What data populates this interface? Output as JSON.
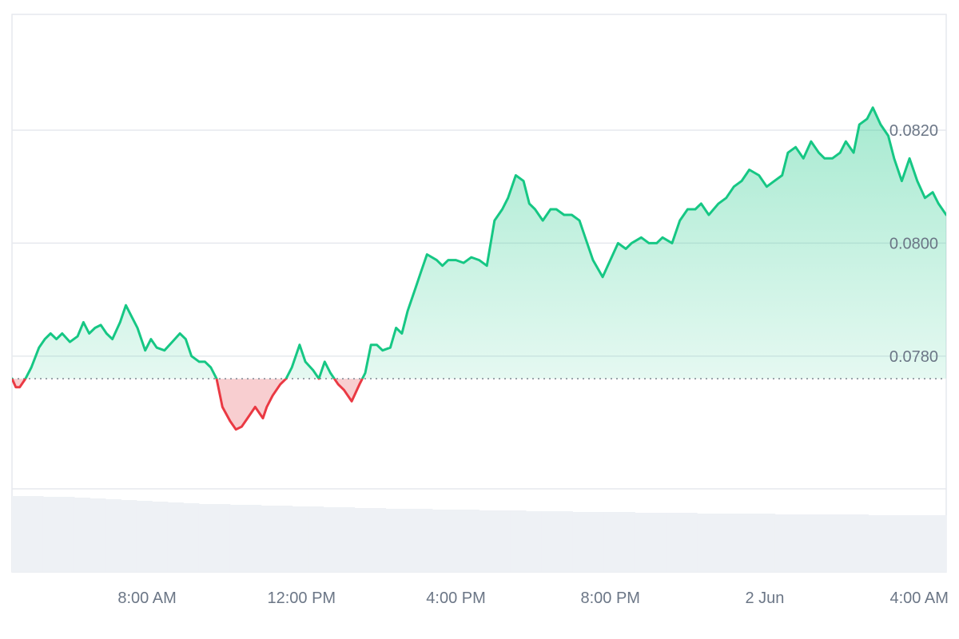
{
  "colors": {
    "up_line": "#16c784",
    "down_line": "#ea3943",
    "up_fill_top": "#16c784",
    "down_fill": "#f7c5c8",
    "grid": "#e6e9ee",
    "volume": "#eef1f5",
    "baseline": "#7d8590",
    "axis_text": "#6b7686"
  },
  "chart_data": {
    "type": "area",
    "baseline": 0.0776,
    "ylim": [
      0.07565,
      0.08405
    ],
    "yticks": [
      0.078,
      0.08,
      0.082
    ],
    "ytick_labels": [
      "0.0780",
      "0.0800",
      "0.0820"
    ],
    "xlim_hours": [
      4.5,
      28.7
    ],
    "xticks_hours": [
      8,
      12,
      16,
      20,
      24,
      28
    ],
    "xtick_labels": [
      "8:00 AM",
      "12:00 PM",
      "4:00 PM",
      "8:00 PM",
      "2 Jun",
      "4:00 AM"
    ],
    "series": [
      {
        "x": [
          4.5,
          4.6,
          4.7,
          4.85,
          5.0,
          5.2,
          5.35,
          5.5,
          5.65,
          5.8,
          6.0,
          6.2,
          6.35,
          6.5,
          6.65,
          6.8,
          6.95,
          7.1,
          7.3,
          7.45,
          7.6,
          7.75,
          7.95,
          8.1,
          8.25,
          8.45,
          8.65,
          8.85,
          9.0,
          9.15,
          9.35,
          9.5,
          9.65,
          9.8,
          9.95,
          10.15,
          10.3,
          10.45,
          10.6,
          10.8,
          11.0,
          11.1,
          11.25,
          11.45,
          11.6,
          11.75,
          11.95,
          12.1,
          12.3,
          12.45,
          12.6,
          12.75,
          12.95,
          13.1,
          13.3,
          13.5,
          13.65,
          13.8,
          13.95,
          14.1,
          14.3,
          14.45,
          14.6,
          14.75,
          14.95,
          15.1,
          15.25,
          15.5,
          15.65,
          15.8,
          16.0,
          16.2,
          16.4,
          16.6,
          16.8,
          17.0,
          17.2,
          17.35,
          17.55,
          17.75,
          17.9,
          18.05,
          18.25,
          18.45,
          18.6,
          18.8,
          19.0,
          19.2,
          19.35,
          19.55,
          19.8,
          20.0,
          20.2,
          20.4,
          20.55,
          20.8,
          21.0,
          21.2,
          21.35,
          21.6,
          21.8,
          22.0,
          22.2,
          22.35,
          22.55,
          22.8,
          23.0,
          23.2,
          23.4,
          23.6,
          23.85,
          24.05,
          24.25,
          24.45,
          24.6,
          24.8,
          25.0,
          25.2,
          25.4,
          25.55,
          25.75,
          25.95,
          26.1,
          26.3,
          26.45,
          26.65,
          26.8,
          27.0,
          27.2,
          27.35,
          27.55,
          27.75,
          27.95,
          28.15,
          28.35,
          28.5,
          28.7
        ],
        "y": [
          0.0776,
          0.07745,
          0.07745,
          0.0776,
          0.0778,
          0.07815,
          0.0783,
          0.0784,
          0.0783,
          0.0784,
          0.07825,
          0.07835,
          0.0786,
          0.0784,
          0.0785,
          0.07855,
          0.0784,
          0.0783,
          0.0786,
          0.0789,
          0.0787,
          0.0785,
          0.0781,
          0.0783,
          0.07815,
          0.0781,
          0.07825,
          0.0784,
          0.0783,
          0.078,
          0.0779,
          0.0779,
          0.0778,
          0.0776,
          0.0771,
          0.07685,
          0.0767,
          0.07675,
          0.0769,
          0.0771,
          0.0769,
          0.0771,
          0.0773,
          0.0775,
          0.0776,
          0.0778,
          0.0782,
          0.0779,
          0.07775,
          0.0776,
          0.0779,
          0.0777,
          0.0775,
          0.0774,
          0.0772,
          0.0775,
          0.0777,
          0.0782,
          0.0782,
          0.0781,
          0.07815,
          0.0785,
          0.0784,
          0.0788,
          0.0792,
          0.0795,
          0.0798,
          0.0797,
          0.0796,
          0.0797,
          0.0797,
          0.07965,
          0.07975,
          0.0797,
          0.0796,
          0.0804,
          0.0806,
          0.0808,
          0.0812,
          0.0811,
          0.0807,
          0.0806,
          0.0804,
          0.0806,
          0.0806,
          0.0805,
          0.0805,
          0.0804,
          0.0801,
          0.0797,
          0.0794,
          0.0797,
          0.08,
          0.0799,
          0.08,
          0.0801,
          0.08,
          0.08,
          0.0801,
          0.08,
          0.0804,
          0.0806,
          0.0806,
          0.0807,
          0.0805,
          0.0807,
          0.0808,
          0.081,
          0.0811,
          0.0813,
          0.0812,
          0.081,
          0.0811,
          0.0812,
          0.0816,
          0.0817,
          0.0815,
          0.0818,
          0.0816,
          0.0815,
          0.0815,
          0.0816,
          0.0818,
          0.0816,
          0.0821,
          0.0822,
          0.0824,
          0.0821,
          0.0819,
          0.0815,
          0.0811,
          0.0815,
          0.0811,
          0.0808,
          0.0809,
          0.0807,
          0.0805
        ]
      }
    ],
    "volume": [
      95,
      95,
      94,
      94,
      93,
      92,
      91,
      90,
      89,
      88,
      87,
      86,
      85,
      85,
      84,
      84,
      83,
      83,
      82,
      82,
      81,
      81,
      80,
      80,
      79,
      79,
      79,
      78,
      78,
      78,
      77,
      77,
      77,
      76,
      76,
      76,
      75,
      75,
      75,
      75,
      74,
      74,
      74,
      74,
      73,
      73,
      73,
      73,
      73,
      72,
      72,
      72,
      72,
      72,
      72,
      71,
      71,
      71,
      71,
      71
    ],
    "grid": true,
    "legend": "none"
  }
}
